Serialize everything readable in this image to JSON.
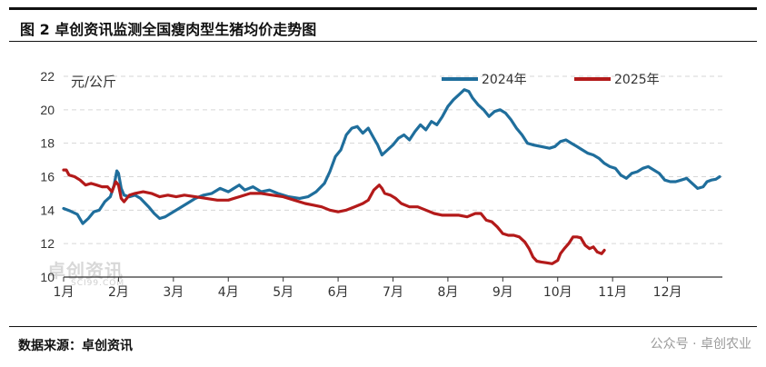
{
  "header": {
    "title": "图 2 卓创资讯监测全国瘦肉型生猪均价走势图"
  },
  "footer": {
    "source": "数据来源：卓创资讯",
    "wechat": "公众号 · 卓创农业"
  },
  "watermark": {
    "cn": "卓创资讯",
    "en": "SCI99.COM"
  },
  "chart_data": {
    "type": "line",
    "ylabel": "元/公斤",
    "ylim": [
      10,
      22
    ],
    "yticks": [
      10,
      12,
      14,
      16,
      18,
      20,
      22
    ],
    "xlim": [
      0,
      12
    ],
    "xticks": [
      {
        "pos": 0,
        "label": "1月"
      },
      {
        "pos": 1,
        "label": "2月"
      },
      {
        "pos": 2,
        "label": "3月"
      },
      {
        "pos": 3,
        "label": "4月"
      },
      {
        "pos": 4,
        "label": "5月"
      },
      {
        "pos": 5,
        "label": "6月"
      },
      {
        "pos": 6,
        "label": "7月"
      },
      {
        "pos": 7,
        "label": "8月"
      },
      {
        "pos": 8,
        "label": "9月"
      },
      {
        "pos": 9,
        "label": "10月"
      },
      {
        "pos": 10,
        "label": "11月"
      },
      {
        "pos": 11,
        "label": "12月"
      }
    ],
    "grid": "horizontal dashed",
    "legend": "top-right",
    "series": [
      {
        "name": "2024年",
        "color": "#1f6e9c",
        "points": [
          [
            0.0,
            14.1
          ],
          [
            0.12,
            13.95
          ],
          [
            0.25,
            13.75
          ],
          [
            0.35,
            13.2
          ],
          [
            0.45,
            13.5
          ],
          [
            0.55,
            13.9
          ],
          [
            0.65,
            14.0
          ],
          [
            0.75,
            14.5
          ],
          [
            0.85,
            14.8
          ],
          [
            0.92,
            15.5
          ],
          [
            0.97,
            16.35
          ],
          [
            1.0,
            16.2
          ],
          [
            1.05,
            15.3
          ],
          [
            1.1,
            14.9
          ],
          [
            1.2,
            14.8
          ],
          [
            1.3,
            14.9
          ],
          [
            1.4,
            14.7
          ],
          [
            1.55,
            14.2
          ],
          [
            1.65,
            13.8
          ],
          [
            1.75,
            13.5
          ],
          [
            1.85,
            13.6
          ],
          [
            1.95,
            13.8
          ],
          [
            2.1,
            14.1
          ],
          [
            2.25,
            14.4
          ],
          [
            2.4,
            14.7
          ],
          [
            2.55,
            14.9
          ],
          [
            2.7,
            15.0
          ],
          [
            2.85,
            15.3
          ],
          [
            3.0,
            15.1
          ],
          [
            3.1,
            15.3
          ],
          [
            3.2,
            15.5
          ],
          [
            3.3,
            15.2
          ],
          [
            3.45,
            15.4
          ],
          [
            3.6,
            15.1
          ],
          [
            3.75,
            15.2
          ],
          [
            3.9,
            15.0
          ],
          [
            4.0,
            14.9
          ],
          [
            4.1,
            14.8
          ],
          [
            4.3,
            14.7
          ],
          [
            4.45,
            14.8
          ],
          [
            4.6,
            15.1
          ],
          [
            4.75,
            15.6
          ],
          [
            4.85,
            16.3
          ],
          [
            4.95,
            17.2
          ],
          [
            5.05,
            17.6
          ],
          [
            5.15,
            18.5
          ],
          [
            5.25,
            18.9
          ],
          [
            5.35,
            19.0
          ],
          [
            5.45,
            18.6
          ],
          [
            5.55,
            18.9
          ],
          [
            5.65,
            18.3
          ],
          [
            5.72,
            17.9
          ],
          [
            5.8,
            17.3
          ],
          [
            5.9,
            17.6
          ],
          [
            6.0,
            17.9
          ],
          [
            6.1,
            18.3
          ],
          [
            6.2,
            18.5
          ],
          [
            6.3,
            18.2
          ],
          [
            6.4,
            18.7
          ],
          [
            6.5,
            19.1
          ],
          [
            6.6,
            18.8
          ],
          [
            6.7,
            19.3
          ],
          [
            6.8,
            19.1
          ],
          [
            6.9,
            19.6
          ],
          [
            7.0,
            20.2
          ],
          [
            7.1,
            20.6
          ],
          [
            7.2,
            20.9
          ],
          [
            7.3,
            21.2
          ],
          [
            7.38,
            21.1
          ],
          [
            7.45,
            20.7
          ],
          [
            7.55,
            20.3
          ],
          [
            7.65,
            20.0
          ],
          [
            7.75,
            19.6
          ],
          [
            7.85,
            19.9
          ],
          [
            7.95,
            20.0
          ],
          [
            8.05,
            19.8
          ],
          [
            8.15,
            19.4
          ],
          [
            8.25,
            18.9
          ],
          [
            8.35,
            18.5
          ],
          [
            8.45,
            18.0
          ],
          [
            8.55,
            17.9
          ],
          [
            8.7,
            17.8
          ],
          [
            8.85,
            17.7
          ],
          [
            8.95,
            17.8
          ],
          [
            9.05,
            18.1
          ],
          [
            9.15,
            18.2
          ],
          [
            9.25,
            18.0
          ],
          [
            9.35,
            17.8
          ],
          [
            9.45,
            17.6
          ],
          [
            9.55,
            17.4
          ],
          [
            9.65,
            17.3
          ],
          [
            9.75,
            17.1
          ],
          [
            9.85,
            16.8
          ],
          [
            9.95,
            16.6
          ],
          [
            10.05,
            16.5
          ],
          [
            10.15,
            16.1
          ],
          [
            10.25,
            15.9
          ],
          [
            10.35,
            16.2
          ],
          [
            10.45,
            16.3
          ],
          [
            10.55,
            16.5
          ],
          [
            10.65,
            16.6
          ],
          [
            10.75,
            16.4
          ],
          [
            10.85,
            16.2
          ],
          [
            10.95,
            15.8
          ],
          [
            11.05,
            15.7
          ],
          [
            11.15,
            15.7
          ],
          [
            11.25,
            15.8
          ],
          [
            11.35,
            15.9
          ],
          [
            11.45,
            15.6
          ],
          [
            11.55,
            15.3
          ],
          [
            11.65,
            15.4
          ],
          [
            11.72,
            15.7
          ],
          [
            11.8,
            15.8
          ],
          [
            11.88,
            15.85
          ],
          [
            11.95,
            16.0
          ]
        ]
      },
      {
        "name": "2025年",
        "color": "#b31a1a",
        "points": [
          [
            0.0,
            16.4
          ],
          [
            0.05,
            16.4
          ],
          [
            0.1,
            16.1
          ],
          [
            0.2,
            16.0
          ],
          [
            0.3,
            15.8
          ],
          [
            0.4,
            15.5
          ],
          [
            0.5,
            15.6
          ],
          [
            0.6,
            15.5
          ],
          [
            0.7,
            15.4
          ],
          [
            0.8,
            15.4
          ],
          [
            0.88,
            15.1
          ],
          [
            0.95,
            15.7
          ],
          [
            1.0,
            15.5
          ],
          [
            1.05,
            14.7
          ],
          [
            1.1,
            14.5
          ],
          [
            1.15,
            14.7
          ],
          [
            1.2,
            14.9
          ],
          [
            1.3,
            15.0
          ],
          [
            1.45,
            15.1
          ],
          [
            1.6,
            15.0
          ],
          [
            1.75,
            14.8
          ],
          [
            1.9,
            14.9
          ],
          [
            2.05,
            14.8
          ],
          [
            2.2,
            14.9
          ],
          [
            2.4,
            14.8
          ],
          [
            2.6,
            14.7
          ],
          [
            2.8,
            14.6
          ],
          [
            3.0,
            14.6
          ],
          [
            3.2,
            14.8
          ],
          [
            3.4,
            15.0
          ],
          [
            3.6,
            15.0
          ],
          [
            3.8,
            14.9
          ],
          [
            4.0,
            14.8
          ],
          [
            4.2,
            14.6
          ],
          [
            4.4,
            14.4
          ],
          [
            4.55,
            14.3
          ],
          [
            4.7,
            14.2
          ],
          [
            4.85,
            14.0
          ],
          [
            5.0,
            13.9
          ],
          [
            5.15,
            14.0
          ],
          [
            5.3,
            14.2
          ],
          [
            5.45,
            14.4
          ],
          [
            5.55,
            14.6
          ],
          [
            5.65,
            15.2
          ],
          [
            5.75,
            15.5
          ],
          [
            5.8,
            15.3
          ],
          [
            5.85,
            15.0
          ],
          [
            5.95,
            14.9
          ],
          [
            6.05,
            14.7
          ],
          [
            6.15,
            14.4
          ],
          [
            6.3,
            14.2
          ],
          [
            6.45,
            14.2
          ],
          [
            6.6,
            14.0
          ],
          [
            6.75,
            13.8
          ],
          [
            6.9,
            13.7
          ],
          [
            7.05,
            13.7
          ],
          [
            7.2,
            13.7
          ],
          [
            7.35,
            13.6
          ],
          [
            7.5,
            13.8
          ],
          [
            7.6,
            13.8
          ],
          [
            7.7,
            13.4
          ],
          [
            7.8,
            13.3
          ],
          [
            7.9,
            13.0
          ],
          [
            8.0,
            12.6
          ],
          [
            8.1,
            12.5
          ],
          [
            8.2,
            12.5
          ],
          [
            8.3,
            12.4
          ],
          [
            8.4,
            12.1
          ],
          [
            8.48,
            11.7
          ],
          [
            8.55,
            11.2
          ],
          [
            8.62,
            10.95
          ],
          [
            8.7,
            10.9
          ],
          [
            8.8,
            10.85
          ],
          [
            8.9,
            10.8
          ],
          [
            9.0,
            11.0
          ],
          [
            9.05,
            11.4
          ],
          [
            9.12,
            11.7
          ],
          [
            9.2,
            12.0
          ],
          [
            9.28,
            12.4
          ],
          [
            9.35,
            12.4
          ],
          [
            9.42,
            12.35
          ],
          [
            9.5,
            11.9
          ],
          [
            9.58,
            11.7
          ],
          [
            9.65,
            11.8
          ],
          [
            9.72,
            11.5
          ],
          [
            9.8,
            11.4
          ],
          [
            9.85,
            11.6
          ]
        ]
      }
    ]
  }
}
